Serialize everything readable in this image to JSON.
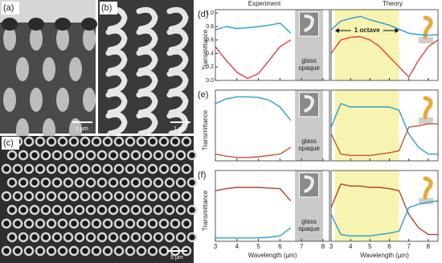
{
  "images": {
    "panels": [
      {
        "label": "(a)",
        "scale": "1 µm"
      },
      {
        "label": "(b)",
        "scale": "1 µm"
      },
      {
        "label": "(c)",
        "scale": "5 µm"
      }
    ]
  },
  "chart_data": [
    {
      "type": "line",
      "title": "Experiment",
      "panel_label": "(d)",
      "ylabel": "Transmittance",
      "x": [
        3,
        3.5,
        4,
        4.5,
        5,
        5.5,
        6,
        6.5,
        7,
        7.5,
        8
      ],
      "series": [
        {
          "color": "#2a9fd0",
          "values": [
            0.75,
            0.8,
            0.77,
            0.78,
            0.8,
            0.82,
            0.85,
            0.7,
            null,
            null,
            0.6
          ]
        },
        {
          "color": "#e0413a",
          "values": [
            0.5,
            0.3,
            0.12,
            0.03,
            0.1,
            0.3,
            0.5,
            0.6,
            null,
            null,
            0.5
          ]
        }
      ],
      "xlim": [
        3,
        8.3
      ],
      "ylim": [
        0,
        1.05
      ],
      "xticks": [
        3,
        4,
        5,
        6,
        7,
        8
      ],
      "yticks": [
        {
          "value": 0,
          "label": "0.0"
        },
        {
          "value": 0.2,
          "label": "0.2"
        },
        {
          "value": 0.4,
          "label": "0.4"
        },
        {
          "value": 0.6,
          "label": "0.6"
        },
        {
          "value": 0.8,
          "label": "0.8"
        },
        {
          "value": 1,
          "label": "1.0"
        }
      ],
      "shade": {
        "from": 6.7,
        "to": 8.0,
        "color": "#c9c9c9"
      },
      "opaque_label": [
        "glass",
        "opaque"
      ]
    },
    {
      "type": "line",
      "title": "Theory",
      "x": [
        3,
        3.5,
        4,
        4.5,
        5,
        5.5,
        6,
        6.5,
        7,
        7.5,
        8,
        8.5
      ],
      "series": [
        {
          "color": "#2a9fd0",
          "values": [
            0.75,
            0.88,
            0.92,
            0.95,
            0.9,
            0.86,
            0.82,
            0.76,
            0.7,
            0.68,
            0.67,
            0.68
          ]
        },
        {
          "color": "#e0413a",
          "values": [
            0.4,
            0.6,
            0.64,
            0.65,
            0.6,
            0.5,
            0.35,
            0.2,
            0.05,
            0.3,
            0.5,
            0.6
          ]
        }
      ],
      "xlim": [
        3,
        8.5
      ],
      "ylim": [
        0,
        1.05
      ],
      "xticks": [
        3,
        4,
        5,
        6,
        7,
        8
      ],
      "band": {
        "from": 3.2,
        "to": 6.5,
        "color": "#f7f3b0"
      },
      "octave_label": "1 octave"
    },
    {
      "type": "line",
      "panel_label": "(e)",
      "ylabel": "Transmittance",
      "x": [
        3,
        3.5,
        4,
        4.5,
        5,
        5.5,
        6,
        6.5,
        7,
        7.5,
        8
      ],
      "series": [
        {
          "color": "#2a9fd0",
          "values": [
            0.85,
            0.92,
            0.95,
            0.95,
            0.94,
            0.9,
            0.8,
            0.6,
            null,
            null,
            0.5
          ]
        },
        {
          "color": "#c0563a",
          "values": [
            0.1,
            0.07,
            0.05,
            0.05,
            0.06,
            0.08,
            0.1,
            0.2,
            null,
            null,
            0.3
          ]
        }
      ],
      "xlim": [
        3,
        8.3
      ],
      "ylim": [
        0,
        1.05
      ],
      "xticks": [
        3,
        4,
        5,
        6,
        7,
        8
      ],
      "shade": {
        "from": 6.7,
        "to": 8.0,
        "color": "#c9c9c9"
      },
      "opaque_label": [
        "glass",
        "opaque"
      ]
    },
    {
      "type": "line",
      "x": [
        3,
        3.5,
        4,
        4.5,
        5,
        5.5,
        6,
        6.5,
        7,
        7.5,
        8,
        8.5
      ],
      "series": [
        {
          "color": "#2a9fd0",
          "values": [
            0.5,
            0.85,
            0.8,
            0.8,
            0.8,
            0.8,
            0.8,
            0.75,
            0.4,
            0.2,
            0.1,
            0.1
          ]
        },
        {
          "color": "#c0563a",
          "values": [
            0.4,
            0.1,
            0.08,
            0.08,
            0.08,
            0.1,
            0.12,
            0.15,
            0.5,
            0.52,
            0.55,
            0.55
          ]
        }
      ],
      "xlim": [
        3,
        8.5
      ],
      "ylim": [
        0,
        1.05
      ],
      "xticks": [
        3,
        4,
        5,
        6,
        7,
        8
      ],
      "band": {
        "from": 3.2,
        "to": 6.5,
        "color": "#f7f3b0"
      }
    },
    {
      "type": "line",
      "panel_label": "(f)",
      "ylabel": "Transmittance",
      "xlabel": "Wavelength (µm)",
      "x": [
        3,
        3.5,
        4,
        4.5,
        5,
        5.5,
        6,
        6.5,
        7,
        7.5,
        8
      ],
      "series": [
        {
          "color": "#b0442e",
          "values": [
            0.75,
            0.78,
            0.8,
            0.8,
            0.8,
            0.79,
            0.78,
            0.6,
            null,
            null,
            0.55
          ]
        },
        {
          "color": "#2a9fd0",
          "values": [
            0.05,
            0.05,
            0.05,
            0.05,
            0.05,
            0.06,
            0.08,
            0.2,
            null,
            null,
            0.3
          ]
        }
      ],
      "xlim": [
        3,
        8.3
      ],
      "ylim": [
        0,
        1.05
      ],
      "xticks": [
        3,
        4,
        5,
        6,
        7,
        8
      ],
      "shade": {
        "from": 6.7,
        "to": 8.0,
        "color": "#c9c9c9"
      },
      "opaque_label": [
        "glass",
        "opaque"
      ]
    },
    {
      "type": "line",
      "xlabel": "Wavelength (µm)",
      "x": [
        3,
        3.5,
        4,
        4.5,
        5,
        5.5,
        6,
        6.5,
        7,
        7.5,
        8,
        8.5
      ],
      "series": [
        {
          "color": "#b0442e",
          "values": [
            0.5,
            0.85,
            0.82,
            0.82,
            0.8,
            0.8,
            0.78,
            0.75,
            0.4,
            0.2,
            0.1,
            0.1
          ]
        },
        {
          "color": "#2a9fd0",
          "values": [
            0.4,
            0.1,
            0.08,
            0.08,
            0.08,
            0.1,
            0.12,
            0.15,
            0.5,
            0.55,
            0.58,
            0.6
          ]
        }
      ],
      "xlim": [
        3,
        8.5
      ],
      "ylim": [
        0,
        1.05
      ],
      "xticks": [
        3,
        4,
        5,
        6,
        7,
        8
      ],
      "band": {
        "from": 3.2,
        "to": 6.5,
        "color": "#f7f3b0"
      }
    }
  ]
}
